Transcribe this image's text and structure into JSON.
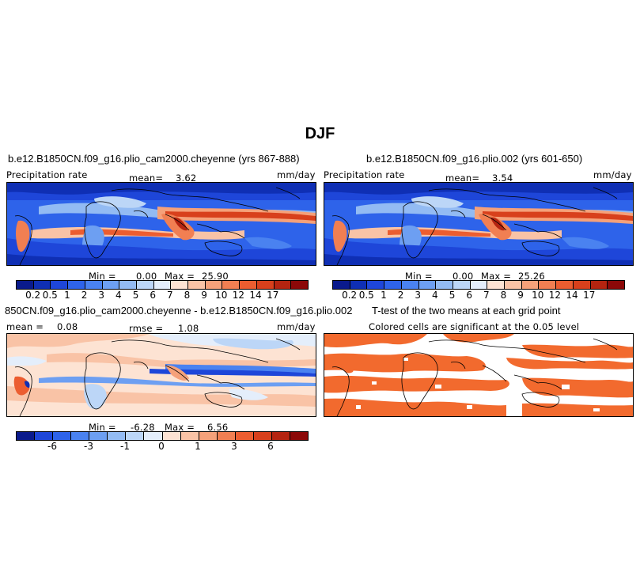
{
  "figure": {
    "season": "DJF"
  },
  "panels": {
    "p1": {
      "title": "b.e12.B1850CN.f09_g16.plio_cam2000.cheyenne (yrs 867-888)",
      "variable": "Precipitation rate",
      "mean_label": "mean=",
      "mean_value": "3.62",
      "units": "mm/day",
      "min_label": "Min =",
      "min_value": "0.00",
      "max_label": "Max =",
      "max_value": "25.90"
    },
    "p2": {
      "title": "b.e12.B1850CN.f09_g16.plio.002 (yrs 601-650)",
      "variable": "Precipitation rate",
      "mean_label": "mean=",
      "mean_value": "3.54",
      "units": "mm/day",
      "min_label": "Min =",
      "min_value": "0.00",
      "max_label": "Max =",
      "max_value": "25.26"
    },
    "p3": {
      "title": "850CN.f09_g16.plio_cam2000.cheyenne - b.e12.B1850CN.f09_g16.plio.002",
      "mean_label": "mean =",
      "mean_value": "0.08",
      "rmse_label": "rmse =",
      "rmse_value": "1.08",
      "units": "mm/day",
      "min_label": "Min =",
      "min_value": "-6.28",
      "max_label": "Max =",
      "max_value": "6.56"
    },
    "p4": {
      "title": "T-test of the two means at each grid point",
      "subtitle": "Colored cells are significant at the 0.05 level"
    }
  },
  "colorbars": {
    "precip": {
      "colors": [
        "#0a1a8c",
        "#0f2fb4",
        "#1e46d9",
        "#2e63ea",
        "#4a82f0",
        "#6d9ff2",
        "#93bbf3",
        "#bcd6f7",
        "#e4eefb",
        "#fde3d3",
        "#f9c3a6",
        "#f5a17a",
        "#f17f52",
        "#ec5d30",
        "#d8401c",
        "#b52410",
        "#8c0808"
      ],
      "ticks": [
        "0.2",
        "0.5",
        "1",
        "2",
        "3",
        "4",
        "5",
        "6",
        "7",
        "8",
        "9",
        "10",
        "12",
        "14",
        "17"
      ]
    },
    "diff": {
      "colors": [
        "#0a1a8c",
        "#1e46d9",
        "#2e63ea",
        "#4a82f0",
        "#6d9ff2",
        "#93bbf3",
        "#bcd6f7",
        "#e4eefb",
        "#fde3d3",
        "#f9c3a6",
        "#f5a17a",
        "#f17f52",
        "#ec5d30",
        "#d8401c",
        "#b52410",
        "#8c0808"
      ],
      "ticks": [
        "-6",
        "-3",
        "-1",
        "0",
        "1",
        "3",
        "6"
      ]
    },
    "significance_color": "#f26a2e"
  }
}
